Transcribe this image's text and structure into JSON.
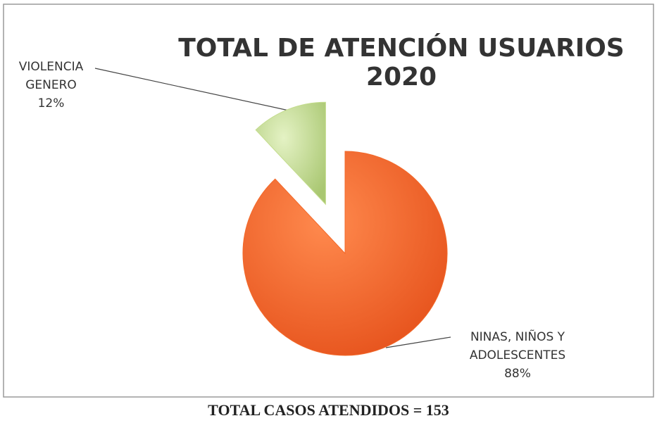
{
  "chart_data": {
    "type": "pie",
    "title": "TOTAL DE ATENCIÓN USUARIOS 2020",
    "categories": [
      "VIOLENCIA GENERO",
      "NINAS, NIÑOS Y ADOLESCENTES"
    ],
    "values": [
      12,
      88
    ],
    "value_labels": [
      "12%",
      "88%"
    ],
    "colors": [
      "#c3dc8c",
      "#f2692a"
    ]
  },
  "caption": "TOTAL CASOS ATENDIDOS = 153"
}
